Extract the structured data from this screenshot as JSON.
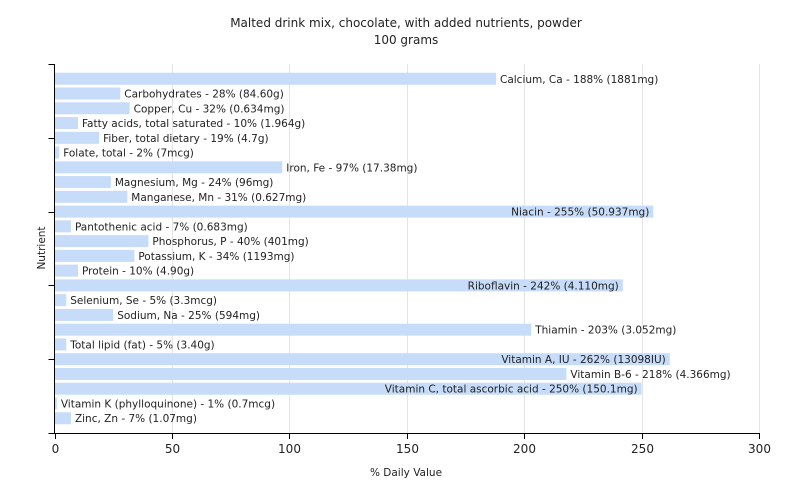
{
  "chart_data": {
    "type": "bar",
    "orientation": "horizontal",
    "title": "Malted drink mix, chocolate, with added nutrients, powder",
    "subtitle": "100 grams",
    "xlabel": "% Daily Value",
    "ylabel": "Nutrient",
    "xlim": [
      0,
      300
    ],
    "xticks": [
      0,
      50,
      100,
      150,
      200,
      250,
      300
    ],
    "grid": true,
    "bar_color": "#c6dcf8",
    "categories": [
      "Calcium, Ca",
      "Carbohydrates",
      "Copper, Cu",
      "Fatty acids, total saturated",
      "Fiber, total dietary",
      "Folate, total",
      "Iron, Fe",
      "Magnesium, Mg",
      "Manganese, Mn",
      "Niacin",
      "Pantothenic acid",
      "Phosphorus, P",
      "Potassium, K",
      "Protein",
      "Riboflavin",
      "Selenium, Se",
      "Sodium, Na",
      "Thiamin",
      "Total lipid (fat)",
      "Vitamin A, IU",
      "Vitamin B-6",
      "Vitamin C, total ascorbic acid",
      "Vitamin K (phylloquinone)",
      "Zinc, Zn"
    ],
    "values": [
      188,
      28,
      32,
      10,
      19,
      2,
      97,
      24,
      31,
      255,
      7,
      40,
      34,
      10,
      242,
      5,
      25,
      203,
      5,
      262,
      218,
      250,
      1,
      7
    ],
    "labels": [
      "Calcium, Ca - 188% (1881mg)",
      "Carbohydrates - 28% (84.60g)",
      "Copper, Cu - 32% (0.634mg)",
      "Fatty acids, total saturated - 10% (1.964g)",
      "Fiber, total dietary - 19% (4.7g)",
      "Folate, total - 2% (7mcg)",
      "Iron, Fe - 97% (17.38mg)",
      "Magnesium, Mg - 24% (96mg)",
      "Manganese, Mn - 31% (0.627mg)",
      "Niacin - 255% (50.937mg)",
      "Pantothenic acid - 7% (0.683mg)",
      "Phosphorus, P - 40% (401mg)",
      "Potassium, K - 34% (1193mg)",
      "Protein - 10% (4.90g)",
      "Riboflavin - 242% (4.110mg)",
      "Selenium, Se - 5% (3.3mcg)",
      "Sodium, Na - 25% (594mg)",
      "Thiamin - 203% (3.052mg)",
      "Total lipid (fat) - 5% (3.40g)",
      "Vitamin A, IU - 262% (13098IU)",
      "Vitamin B-6 - 218% (4.366mg)",
      "Vitamin C, total ascorbic acid - 250% (150.1mg)",
      "Vitamin K (phylloquinone) - 1% (0.7mcg)",
      "Zinc, Zn - 7% (1.07mg)"
    ]
  }
}
